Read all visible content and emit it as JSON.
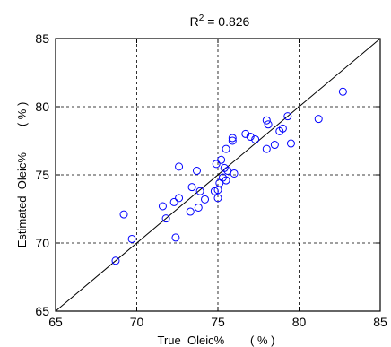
{
  "chart_data": {
    "type": "scatter",
    "title": "R",
    "title_superscript": "2",
    "title_value": " = 0.826",
    "xlabel": "True  Oleic%        ( % )",
    "ylabel": "Estimated  Oleic%        ( % )",
    "xlim": [
      65,
      85
    ],
    "ylim": [
      65,
      85
    ],
    "xticks": [
      65,
      70,
      75,
      80,
      85
    ],
    "yticks": [
      65,
      70,
      75,
      80,
      85
    ],
    "grid": true,
    "reference_line": {
      "from": [
        65,
        65
      ],
      "to": [
        85,
        85
      ]
    },
    "marker_color": "#0000ff",
    "points": [
      [
        68.7,
        68.7
      ],
      [
        69.2,
        72.1
      ],
      [
        69.7,
        70.3
      ],
      [
        71.6,
        72.7
      ],
      [
        71.8,
        71.8
      ],
      [
        72.3,
        73.0
      ],
      [
        72.4,
        70.4
      ],
      [
        72.6,
        73.3
      ],
      [
        72.6,
        75.6
      ],
      [
        73.3,
        72.3
      ],
      [
        73.4,
        74.1
      ],
      [
        73.7,
        75.3
      ],
      [
        73.8,
        72.6
      ],
      [
        73.9,
        73.8
      ],
      [
        74.2,
        73.2
      ],
      [
        74.8,
        73.8
      ],
      [
        74.9,
        75.8
      ],
      [
        75.0,
        73.3
      ],
      [
        75.0,
        73.9
      ],
      [
        75.1,
        74.4
      ],
      [
        75.2,
        76.1
      ],
      [
        75.3,
        74.8
      ],
      [
        75.4,
        75.5
      ],
      [
        75.5,
        76.9
      ],
      [
        75.5,
        74.6
      ],
      [
        75.6,
        75.3
      ],
      [
        75.9,
        77.5
      ],
      [
        75.9,
        77.7
      ],
      [
        76.0,
        75.1
      ],
      [
        76.7,
        78.0
      ],
      [
        77.0,
        77.8
      ],
      [
        77.3,
        77.6
      ],
      [
        78.0,
        76.9
      ],
      [
        78.0,
        79.0
      ],
      [
        78.1,
        78.7
      ],
      [
        78.5,
        77.2
      ],
      [
        78.8,
        78.2
      ],
      [
        79.0,
        78.4
      ],
      [
        79.3,
        79.3
      ],
      [
        79.5,
        77.3
      ],
      [
        81.2,
        79.1
      ],
      [
        82.7,
        81.1
      ]
    ]
  }
}
